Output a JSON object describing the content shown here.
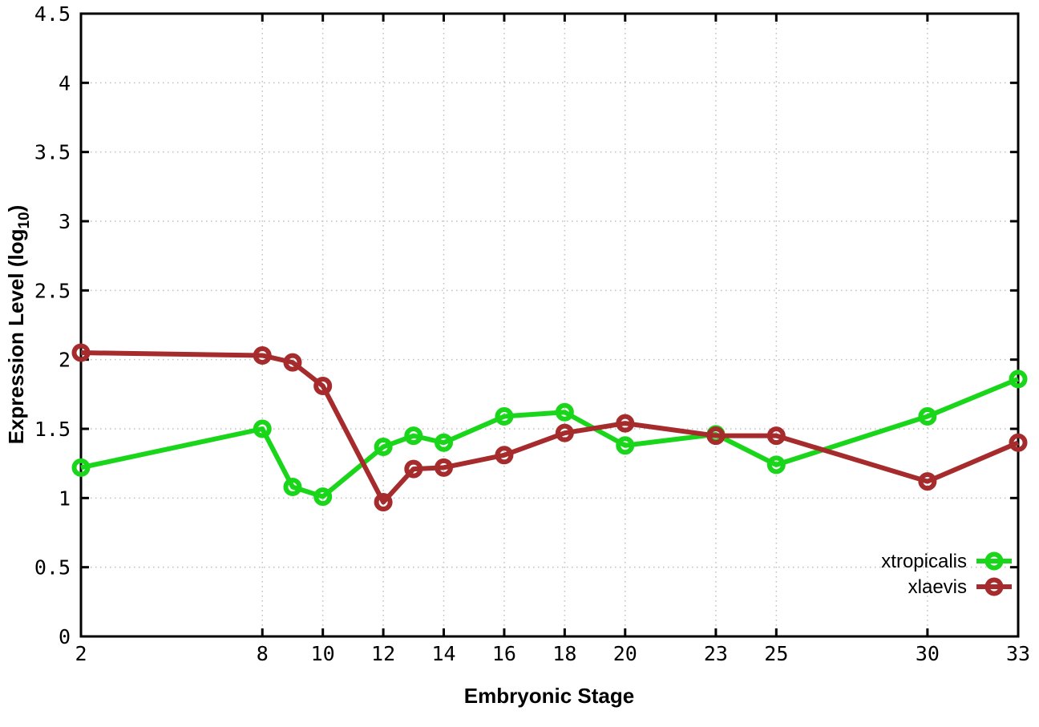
{
  "chart_data": {
    "type": "line",
    "title": "",
    "xlabel": "Embryonic Stage",
    "ylabel": "Expression Level (log10)",
    "ylabel_parts": {
      "main": "Expression Level (log",
      "sub": "10",
      "end": ")"
    },
    "x": [
      2,
      8,
      9,
      10,
      12,
      13,
      14,
      16,
      18,
      20,
      23,
      25,
      30,
      33
    ],
    "x_tick_labels": [
      2,
      8,
      10,
      12,
      14,
      16,
      18,
      20,
      23,
      25,
      30,
      33
    ],
    "y_tick_labels": [
      0,
      0.5,
      1,
      1.5,
      2,
      2.5,
      3,
      3.5,
      4,
      4.5
    ],
    "xlim": [
      2,
      33
    ],
    "ylim": [
      0,
      4.5
    ],
    "grid": true,
    "legend_position": "inside-bottom-right",
    "series": [
      {
        "name": "xtropicalis",
        "color": "#1ad61a",
        "marker": "open-circle",
        "values": [
          1.22,
          1.5,
          1.08,
          1.01,
          1.37,
          1.45,
          1.4,
          1.59,
          1.62,
          1.38,
          1.46,
          1.24,
          1.59,
          1.86
        ]
      },
      {
        "name": "xlaevis",
        "color": "#a62b2c",
        "marker": "open-circle",
        "values": [
          2.05,
          2.03,
          1.98,
          1.81,
          0.97,
          1.21,
          1.22,
          1.31,
          1.47,
          1.54,
          1.45,
          1.45,
          1.12,
          1.4
        ]
      }
    ]
  },
  "colors": {
    "background": "#ffffff",
    "axis": "#000000",
    "grid": "#bfbfbf",
    "text": "#000000"
  }
}
